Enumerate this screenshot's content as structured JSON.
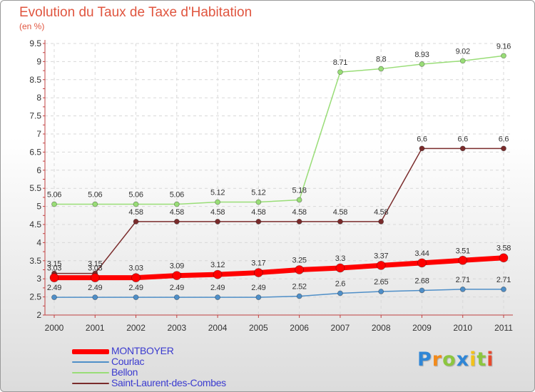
{
  "title": "Evolution du Taux de Taxe d'Habitation",
  "subtitle": "(en %)",
  "logo": {
    "text": "Proxiti",
    "letters": [
      {
        "ch": "P",
        "color": "#2f86d6"
      },
      {
        "ch": "r",
        "color": "#f28a1b"
      },
      {
        "ch": "o",
        "color": "#8cc63f"
      },
      {
        "ch": "x",
        "color": "#2f86d6"
      },
      {
        "ch": "i",
        "color": "#f2c21b"
      },
      {
        "ch": "t",
        "color": "#8cc63f"
      },
      {
        "ch": "i",
        "color": "#e84a2e"
      }
    ]
  },
  "chart_data": {
    "type": "line",
    "title": "Evolution du Taux de Taxe d'Habitation",
    "ylabel": "(en %)",
    "xlabel": "",
    "x": [
      "2000",
      "2001",
      "2002",
      "2003",
      "2004",
      "2005",
      "2006",
      "2007",
      "2008",
      "2009",
      "2010",
      "2011"
    ],
    "ylim": [
      2,
      9.5
    ],
    "yticks": [
      "2",
      "2.5",
      "3",
      "3.5",
      "4",
      "4.5",
      "5",
      "5.5",
      "6",
      "6.5",
      "7",
      "7.5",
      "8",
      "8.5",
      "9",
      "9.5"
    ],
    "grid": true,
    "legend_position": "bottom-left",
    "series": [
      {
        "name": "MONTBOYER",
        "color": "#ff0000",
        "values": [
          3.03,
          3.03,
          3.03,
          3.09,
          3.12,
          3.17,
          3.25,
          3.3,
          3.37,
          3.44,
          3.51,
          3.58
        ],
        "labels": [
          "3.03",
          "3.03",
          "3.03",
          "3.09",
          "3.12",
          "3.17",
          "3.25",
          "3.3",
          "3.37",
          "3.44",
          "3.51",
          "3.58"
        ]
      },
      {
        "name": "Courlac",
        "color": "#4f8fc8",
        "values": [
          2.49,
          2.49,
          2.49,
          2.49,
          2.49,
          2.49,
          2.52,
          2.6,
          2.65,
          2.68,
          2.71,
          2.71
        ],
        "labels": [
          "2.49",
          "2.49",
          "2.49",
          "2.49",
          "2.49",
          "2.49",
          "2.52",
          "2.6",
          "2.65",
          "2.68",
          "2.71",
          "2.71"
        ]
      },
      {
        "name": "Bellon",
        "color": "#99dd77",
        "values": [
          5.06,
          5.06,
          5.06,
          5.06,
          5.12,
          5.12,
          5.18,
          8.71,
          8.8,
          8.93,
          9.02,
          9.16
        ],
        "labels": [
          "5.06",
          "5.06",
          "5.06",
          "5.06",
          "5.12",
          "5.12",
          "5.18",
          "8.71",
          "8.8",
          "8.93",
          "9.02",
          "9.16"
        ]
      },
      {
        "name": "Saint-Laurent-des-Combes",
        "color": "#7a2b2b",
        "values": [
          3.15,
          3.15,
          4.58,
          4.58,
          4.58,
          4.58,
          4.58,
          4.58,
          4.58,
          6.6,
          6.6,
          6.6
        ],
        "labels": [
          "3.15",
          "3.15",
          "4.58",
          "4.58",
          "4.58",
          "4.58",
          "4.58",
          "4.58",
          "4.58",
          "6.6",
          "6.6",
          "6.6"
        ]
      }
    ]
  }
}
